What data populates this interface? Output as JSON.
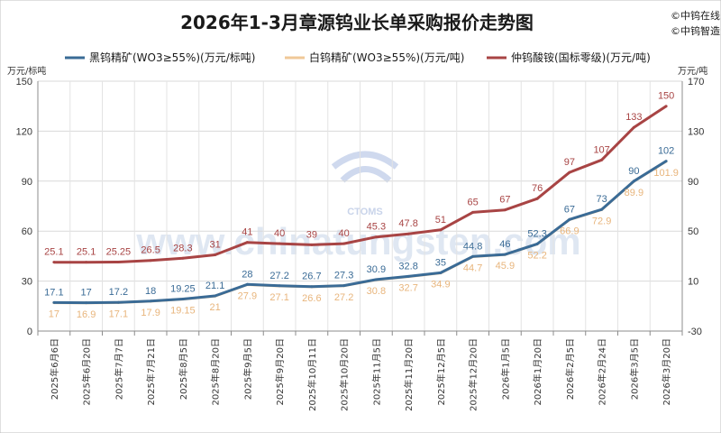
{
  "title": "2026年1-3月章源钨业长单采购报价走势图",
  "copyright": [
    "©中钨在线",
    "©中钨智造"
  ],
  "watermark": {
    "logo_text": "CTOMS",
    "url_text": "www.chinatungsten.com"
  },
  "chart_data": {
    "type": "line",
    "title": "2026年1-3月章源钨业长单采购报价走势图",
    "left_axis": {
      "unit": "万元/标吨",
      "ylim": [
        0,
        150
      ],
      "ticks": [
        0,
        30,
        60,
        90,
        120,
        150
      ]
    },
    "right_axis": {
      "unit": "万元/吨",
      "ylim": [
        -30,
        170
      ],
      "ticks": [
        -30,
        10,
        50,
        90,
        130,
        170
      ]
    },
    "grid": true,
    "legend_position": "top",
    "categories": [
      "2025年6月6日",
      "2025年6月20日",
      "2025年7月7日",
      "2025年7月21日",
      "2025年8月5日",
      "2025年8月20日",
      "2025年9月5日",
      "2025年9月20日",
      "2025年10月11日",
      "2025年10月20日",
      "2025年11月5日",
      "2025年11月20日",
      "2025年12月5日",
      "2025年12月20日",
      "2026年1月5日",
      "2026年1月20日",
      "2026年2月5日",
      "2026年2月24日",
      "2026年3月5日",
      "2026年3月20日"
    ],
    "series": [
      {
        "name": "黑钨精矿(WO3≥55%)(万元/标吨)",
        "color": "#3a6b96",
        "axis": "left",
        "label_pos": "above",
        "values": [
          17.1,
          17,
          17.2,
          18,
          19.25,
          21.1,
          28,
          27.2,
          26.7,
          27.3,
          30.9,
          32.8,
          35,
          44.8,
          46,
          52.3,
          67,
          73,
          90,
          102
        ],
        "labels": [
          "17.1",
          "17",
          "17.2",
          "18",
          "19.25",
          "21.1",
          "28",
          "27.2",
          "26.7",
          "27.3",
          "30.9",
          "32.8",
          "35",
          "44.8",
          "46",
          "52.3",
          "67",
          "73",
          "90",
          "102"
        ]
      },
      {
        "name": "白钨精矿(WO3≥55%)(万元/吨)",
        "color": "#f0c898",
        "axis": "left",
        "label_pos": "below",
        "values": [
          17,
          16.9,
          17.1,
          17.9,
          19.15,
          21,
          27.9,
          27.1,
          26.6,
          27.2,
          30.8,
          32.7,
          34.9,
          44.7,
          45.9,
          52.2,
          66.9,
          72.9,
          89.9,
          101.9
        ],
        "labels": [
          "17",
          "16.9",
          "17.1",
          "17.9",
          "19.15",
          "21",
          "27.9",
          "27.1",
          "26.6",
          "27.2",
          "30.8",
          "32.7",
          "34.9",
          "44.7",
          "45.9",
          "52.2",
          "66.9",
          "72.9",
          "89.9",
          "101.9"
        ]
      },
      {
        "name": "仲钨酸铵(国标零级)(万元/吨)",
        "color": "#a84444",
        "axis": "right",
        "label_pos": "above",
        "values": [
          25.1,
          25.1,
          25.25,
          26.5,
          28.3,
          31,
          41,
          40,
          39,
          40,
          45.3,
          47.8,
          51,
          65,
          67,
          76,
          97,
          107,
          133,
          150
        ],
        "labels": [
          "25.1",
          "25.1",
          "25.25",
          "26.5",
          "28.3",
          "31",
          "41",
          "40",
          "39",
          "40",
          "45.3",
          "47.8",
          "51",
          "65",
          "67",
          "76",
          "97",
          "107",
          "133",
          "150"
        ]
      }
    ]
  }
}
